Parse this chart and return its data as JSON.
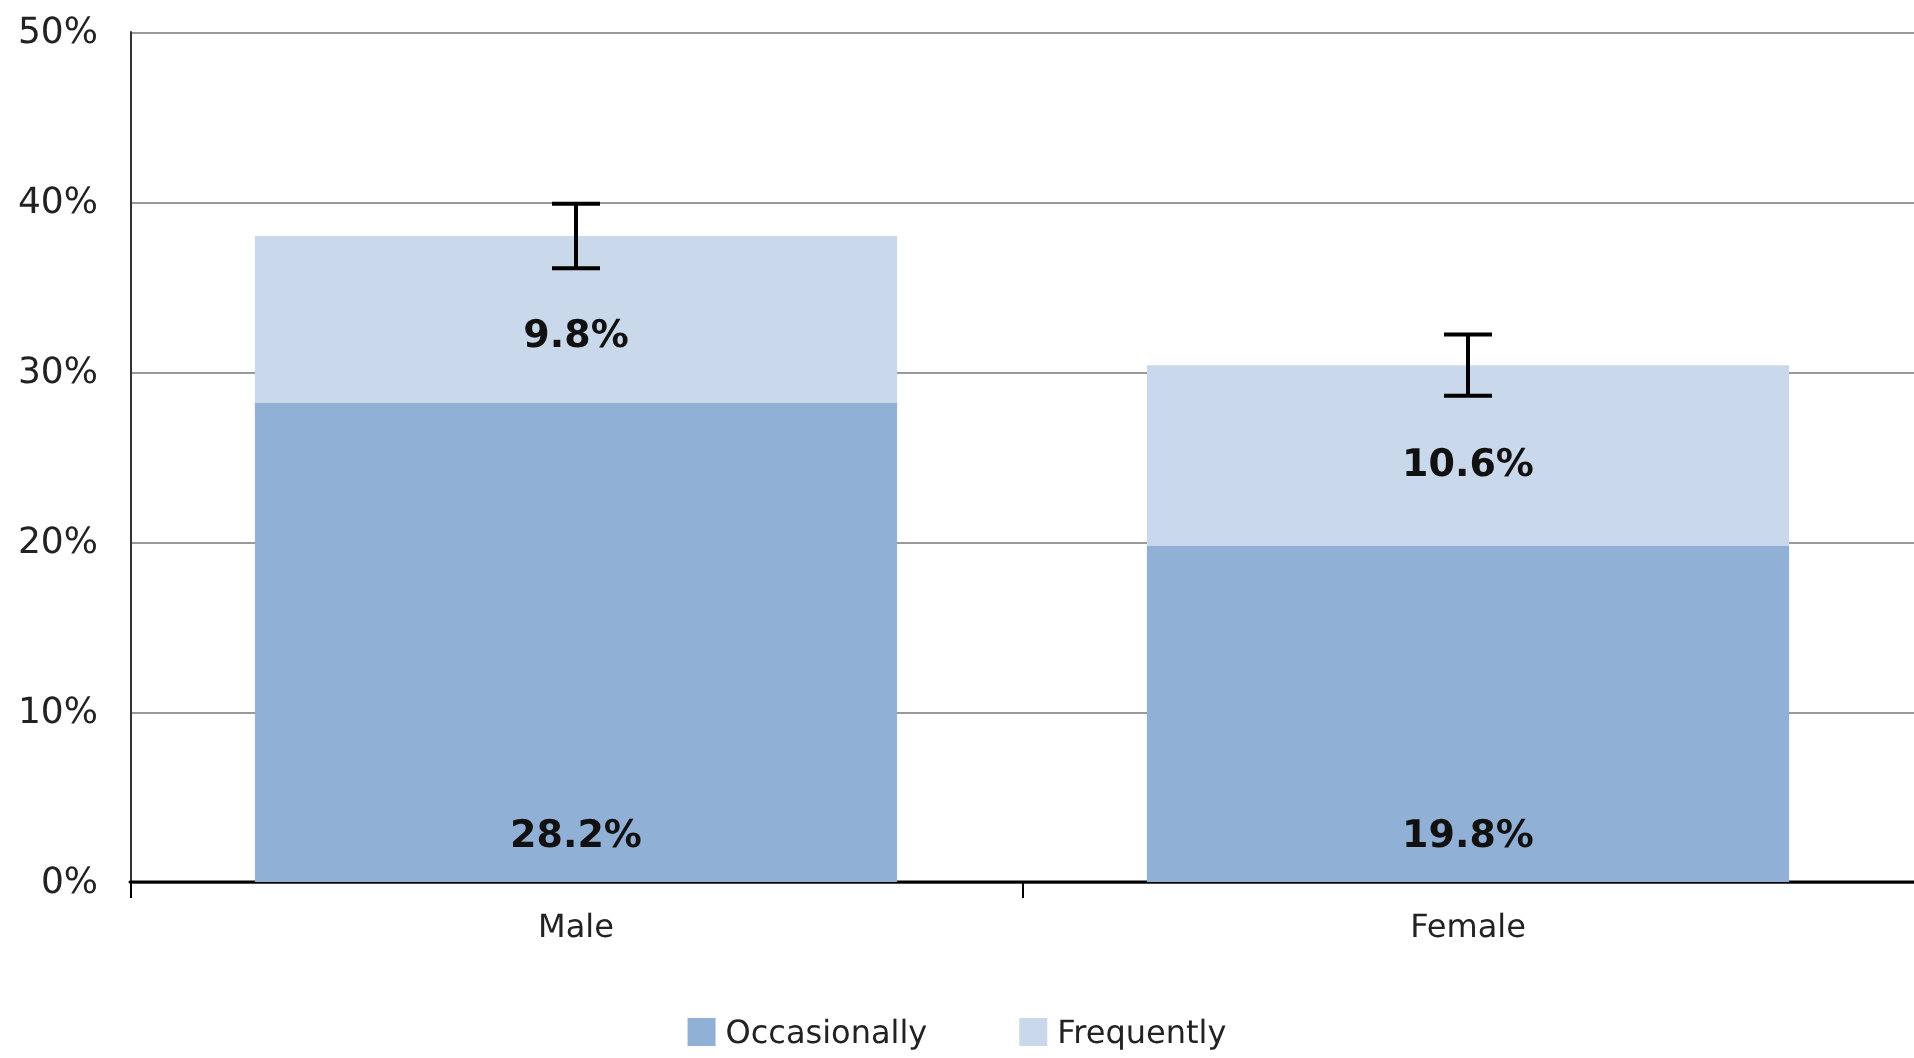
{
  "chart_data": {
    "type": "bar",
    "stacked": true,
    "categories": [
      "Male",
      "Female"
    ],
    "series": [
      {
        "name": "Occasionally",
        "color": "#91b0d6",
        "values": [
          28.2,
          19.8
        ],
        "value_labels": [
          "28.2%",
          "19.8%"
        ]
      },
      {
        "name": "Frequently",
        "color": "#c9d8ea",
        "values": [
          9.8,
          10.6
        ],
        "value_labels": [
          "9.8%",
          "10.6%"
        ],
        "errors": [
          1.9,
          1.8
        ]
      }
    ],
    "ylim": [
      0,
      50
    ],
    "yticks": [
      {
        "value": 0,
        "label": "0%"
      },
      {
        "value": 10,
        "label": "10%"
      },
      {
        "value": 20,
        "label": "20%"
      },
      {
        "value": 30,
        "label": "30%"
      },
      {
        "value": 40,
        "label": "40%"
      },
      {
        "value": 50,
        "label": "50%"
      }
    ],
    "grid": "y",
    "legend": "bottom"
  }
}
